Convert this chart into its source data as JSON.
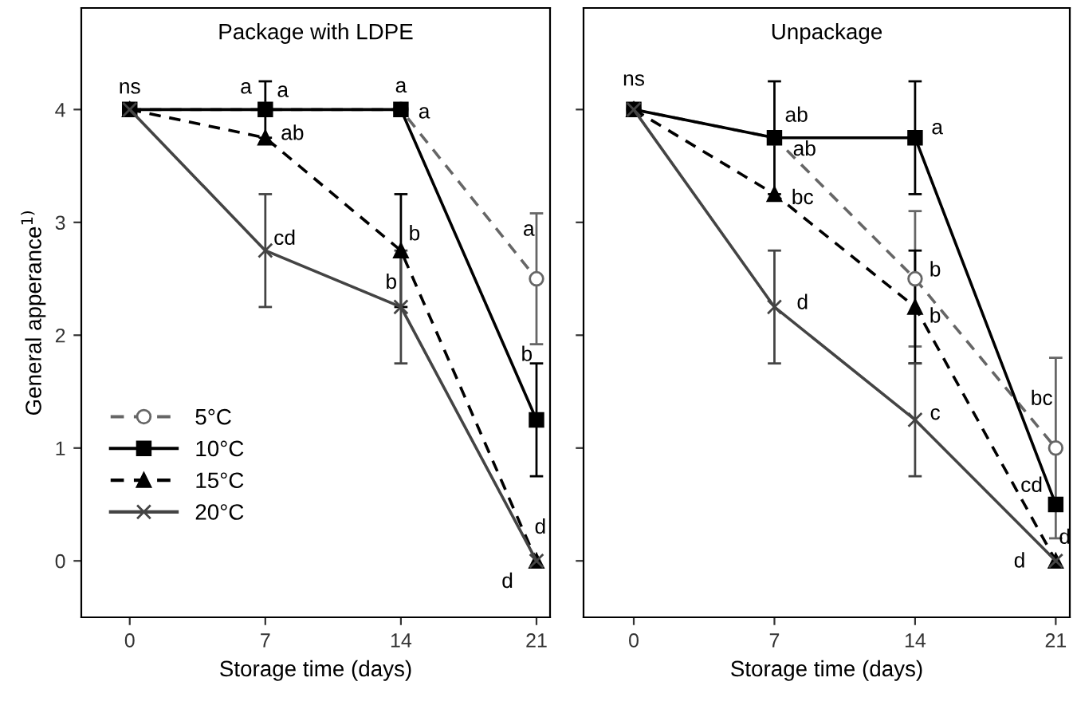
{
  "chart_data": [
    {
      "type": "line",
      "title": "Package with LDPE",
      "xlabel": "Storage time (days)",
      "ylabel": "General apperance$^{1)}$",
      "x": [
        0,
        7,
        14,
        21
      ],
      "xlim": [
        -2.5,
        21.7
      ],
      "xticks": [
        0,
        7,
        14,
        21
      ],
      "ylim": [
        -0.5,
        4.9
      ],
      "yticks": [
        0,
        1,
        2,
        3,
        4
      ],
      "legend": "bottom left",
      "grid": false,
      "series": [
        {
          "name": "5°C",
          "color": "#666666",
          "marker": "circle",
          "line_style": "dashed",
          "values": [
            4,
            4,
            4,
            2.5
          ],
          "errors": [
            null,
            null,
            null,
            0.58
          ]
        },
        {
          "name": "10°C",
          "color": "#000000",
          "marker": "square",
          "line_style": "solid",
          "values": [
            4,
            4,
            4,
            1.25
          ],
          "errors": [
            null,
            0.25,
            null,
            0.5
          ]
        },
        {
          "name": "15°C",
          "color": "#000000",
          "marker": "triangle",
          "line_style": "dashed",
          "values": [
            4,
            3.75,
            2.75,
            0
          ],
          "errors": [
            null,
            null,
            0.5,
            null
          ]
        },
        {
          "name": "20°C",
          "color": "#444444",
          "marker": "cross",
          "line_style": "solid",
          "values": [
            4,
            2.75,
            2.25,
            0
          ],
          "errors": [
            null,
            0.5,
            0.5,
            null
          ]
        }
      ],
      "annotations": [
        {
          "text": "ns",
          "x": 0,
          "y": 4
        },
        {
          "text": "a",
          "x": 7,
          "y": 4
        },
        {
          "text": "a",
          "x": 7,
          "y": 4
        },
        {
          "text": "a",
          "x": 14,
          "y": 4
        },
        {
          "text": "a",
          "x": 14,
          "y": 4
        },
        {
          "text": "ab",
          "x": 7,
          "y": 3.75
        },
        {
          "text": "cd",
          "x": 7,
          "y": 2.75
        },
        {
          "text": "b",
          "x": 14,
          "y": 2.75
        },
        {
          "text": "b",
          "x": 14,
          "y": 2.25
        },
        {
          "text": "a",
          "x": 21,
          "y": 2.5
        },
        {
          "text": "b",
          "x": 21,
          "y": 1.25
        },
        {
          "text": "d",
          "x": 21,
          "y": 0
        },
        {
          "text": "d",
          "x": 21,
          "y": 0
        }
      ]
    },
    {
      "type": "line",
      "title": "Unpackage",
      "xlabel": "Storage time (days)",
      "x": [
        0,
        7,
        14,
        21
      ],
      "xlim": [
        -2.5,
        21.7
      ],
      "xticks": [
        0,
        7,
        14,
        21
      ],
      "ylim": [
        -0.5,
        4.9
      ],
      "yticks": [
        0,
        1,
        2,
        3,
        4
      ],
      "tick_labels": "x",
      "grid": false,
      "series": [
        {
          "color": "#666666",
          "marker": "circle",
          "line_style": "dashed",
          "values": [
            4,
            3.75,
            2.5,
            1.0
          ],
          "errors": [
            null,
            null,
            0.6,
            0.8
          ]
        },
        {
          "color": "#000000",
          "marker": "square",
          "line_style": "solid",
          "values": [
            4,
            3.75,
            3.75,
            0.5
          ],
          "errors": [
            null,
            0.5,
            0.5,
            null
          ]
        },
        {
          "color": "#000000",
          "marker": "triangle",
          "line_style": "dashed",
          "values": [
            4,
            3.25,
            2.25,
            0
          ],
          "errors": [
            null,
            null,
            0.5,
            null
          ]
        },
        {
          "color": "#444444",
          "marker": "cross",
          "line_style": "solid",
          "values": [
            4,
            2.25,
            1.25,
            0
          ],
          "errors": [
            null,
            0.5,
            0.5,
            null
          ]
        }
      ],
      "annotations": [
        {
          "text": "ns",
          "x": 0,
          "y": 4
        },
        {
          "text": "ab",
          "x": 7,
          "y": 3.75
        },
        {
          "text": "ab",
          "x": 7,
          "y": 3.75
        },
        {
          "text": "a",
          "x": 14,
          "y": 3.75
        },
        {
          "text": "bc",
          "x": 7,
          "y": 3.25
        },
        {
          "text": "d",
          "x": 7,
          "y": 2.25
        },
        {
          "text": "b",
          "x": 14,
          "y": 2.5
        },
        {
          "text": "b",
          "x": 14,
          "y": 2.25
        },
        {
          "text": "c",
          "x": 14,
          "y": 1.25
        },
        {
          "text": "bc",
          "x": 21,
          "y": 1.0
        },
        {
          "text": "cd",
          "x": 21,
          "y": 0.5
        },
        {
          "text": "d",
          "x": 21,
          "y": 0
        },
        {
          "text": "d",
          "x": 21,
          "y": 0
        }
      ]
    }
  ]
}
